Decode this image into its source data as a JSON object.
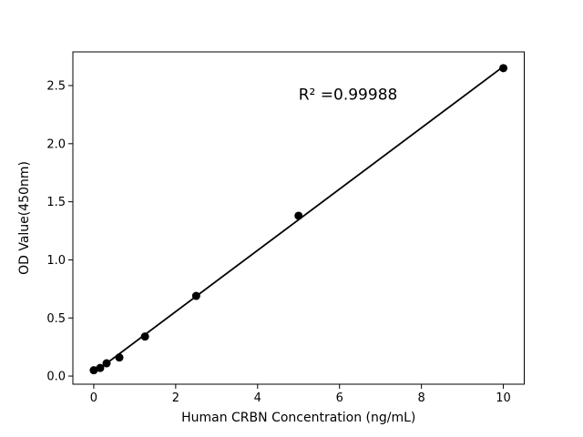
{
  "window": {
    "background": "#ffffff"
  },
  "chart_data": {
    "type": "scatter",
    "title": "",
    "xlabel": "Human CRBN Concentration (ng/mL)",
    "ylabel": "OD Value(450nm)",
    "annotation": {
      "text": "R² =0.99988",
      "x": 5.0,
      "y": 2.38
    },
    "xlim": [
      -0.51,
      10.51
    ],
    "ylim": [
      -0.07,
      2.79
    ],
    "grid": false,
    "legend_position": "none",
    "xticks": {
      "values": [
        0,
        2,
        4,
        6,
        8,
        10
      ],
      "labels": [
        "0",
        "2",
        "4",
        "6",
        "8",
        "10"
      ]
    },
    "yticks": {
      "values": [
        0.0,
        0.5,
        1.0,
        1.5,
        2.0,
        2.5
      ],
      "labels": [
        "0.0",
        "0.5",
        "1.0",
        "1.5",
        "2.0",
        "2.5"
      ]
    },
    "series": [
      {
        "name": "standard-points",
        "type": "scatter",
        "marker": "circle",
        "marker_radius": 4.5,
        "color": "#000000",
        "x": [
          0,
          0.156,
          0.313,
          0.625,
          1.25,
          2.5,
          5,
          10
        ],
        "y": [
          0.05,
          0.07,
          0.11,
          0.16,
          0.34,
          0.69,
          1.38,
          2.65
        ]
      },
      {
        "name": "linear-fit",
        "type": "line",
        "line_width": 1.8,
        "color": "#000000",
        "x": [
          0,
          10
        ],
        "y": [
          0.027,
          2.664
        ]
      }
    ],
    "colors": {
      "spine": "#000000",
      "tick": "#000000",
      "text": "#000000",
      "background": "#ffffff"
    }
  }
}
